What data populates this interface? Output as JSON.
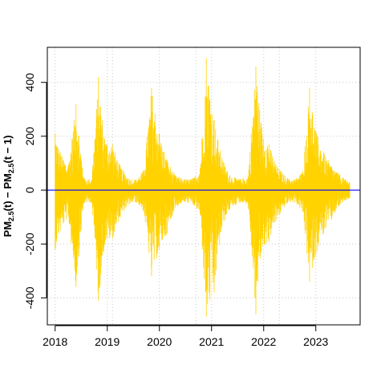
{
  "chart_data": {
    "type": "line",
    "title": "",
    "xlabel": "",
    "ylabel": {
      "text_parts": [
        "PM",
        "2.5",
        "(t) − PM",
        "2.5",
        "(t − 1)"
      ]
    },
    "xlim": [
      2017.85,
      2023.85
    ],
    "ylim": [
      -500,
      530
    ],
    "x_ticks": [
      {
        "value": 2018,
        "label": "2018"
      },
      {
        "value": 2019,
        "label": "2019"
      },
      {
        "value": 2020,
        "label": "2020"
      },
      {
        "value": 2021,
        "label": "2021"
      },
      {
        "value": 2022,
        "label": "2022"
      },
      {
        "value": 2023,
        "label": "2023"
      }
    ],
    "y_ticks": [
      {
        "value": -400,
        "label": "-400"
      },
      {
        "value": -200,
        "label": "-200"
      },
      {
        "value": 0,
        "label": "0"
      },
      {
        "value": 200,
        "label": "200"
      },
      {
        "value": 400,
        "label": "400"
      }
    ],
    "vertical_gridlines": [
      2018.0,
      2019.0,
      2019.1,
      2020.0,
      2020.7,
      2021.0,
      2022.0,
      2022.3,
      2023.0
    ],
    "grid": "dotted",
    "reference_line": {
      "y": 0,
      "color": "#0000ff"
    },
    "series": [
      {
        "color": "#ffd200",
        "x_start": 2018.0,
        "x_end": 2023.65,
        "envelope": [
          {
            "x": 2018.0,
            "upper": 210,
            "lower": -220
          },
          {
            "x": 2018.1,
            "upper": 140,
            "lower": -150
          },
          {
            "x": 2018.25,
            "upper": 90,
            "lower": -100
          },
          {
            "x": 2018.4,
            "upper": 320,
            "lower": -360
          },
          {
            "x": 2018.55,
            "upper": 45,
            "lower": -50
          },
          {
            "x": 2018.7,
            "upper": 40,
            "lower": -45
          },
          {
            "x": 2018.83,
            "upper": 420,
            "lower": -410
          },
          {
            "x": 2018.95,
            "upper": 190,
            "lower": -200
          },
          {
            "x": 2019.1,
            "upper": 170,
            "lower": -180
          },
          {
            "x": 2019.25,
            "upper": 90,
            "lower": -100
          },
          {
            "x": 2019.4,
            "upper": 45,
            "lower": -55
          },
          {
            "x": 2019.55,
            "upper": 40,
            "lower": -45
          },
          {
            "x": 2019.7,
            "upper": 75,
            "lower": -80
          },
          {
            "x": 2019.85,
            "upper": 380,
            "lower": -320
          },
          {
            "x": 2020.0,
            "upper": 210,
            "lower": -220
          },
          {
            "x": 2020.15,
            "upper": 110,
            "lower": -160
          },
          {
            "x": 2020.3,
            "upper": 55,
            "lower": -65
          },
          {
            "x": 2020.5,
            "upper": 40,
            "lower": -45
          },
          {
            "x": 2020.65,
            "upper": 45,
            "lower": -55
          },
          {
            "x": 2020.78,
            "upper": 80,
            "lower": -90
          },
          {
            "x": 2020.9,
            "upper": 490,
            "lower": -470
          },
          {
            "x": 2021.05,
            "upper": 260,
            "lower": -380
          },
          {
            "x": 2021.2,
            "upper": 120,
            "lower": -140
          },
          {
            "x": 2021.35,
            "upper": 55,
            "lower": -70
          },
          {
            "x": 2021.55,
            "upper": 40,
            "lower": -45
          },
          {
            "x": 2021.7,
            "upper": 50,
            "lower": -55
          },
          {
            "x": 2021.85,
            "upper": 460,
            "lower": -460
          },
          {
            "x": 2021.95,
            "upper": 250,
            "lower": -230
          },
          {
            "x": 2022.1,
            "upper": 170,
            "lower": -190
          },
          {
            "x": 2022.25,
            "upper": 90,
            "lower": -110
          },
          {
            "x": 2022.45,
            "upper": 45,
            "lower": -50
          },
          {
            "x": 2022.6,
            "upper": 40,
            "lower": -45
          },
          {
            "x": 2022.75,
            "upper": 70,
            "lower": -80
          },
          {
            "x": 2022.88,
            "upper": 380,
            "lower": -340
          },
          {
            "x": 2023.0,
            "upper": 220,
            "lower": -240
          },
          {
            "x": 2023.15,
            "upper": 140,
            "lower": -160
          },
          {
            "x": 2023.3,
            "upper": 90,
            "lower": -110
          },
          {
            "x": 2023.45,
            "upper": 60,
            "lower": -60
          },
          {
            "x": 2023.6,
            "upper": 35,
            "lower": -35
          },
          {
            "x": 2023.65,
            "upper": 30,
            "lower": -30
          }
        ]
      }
    ]
  }
}
